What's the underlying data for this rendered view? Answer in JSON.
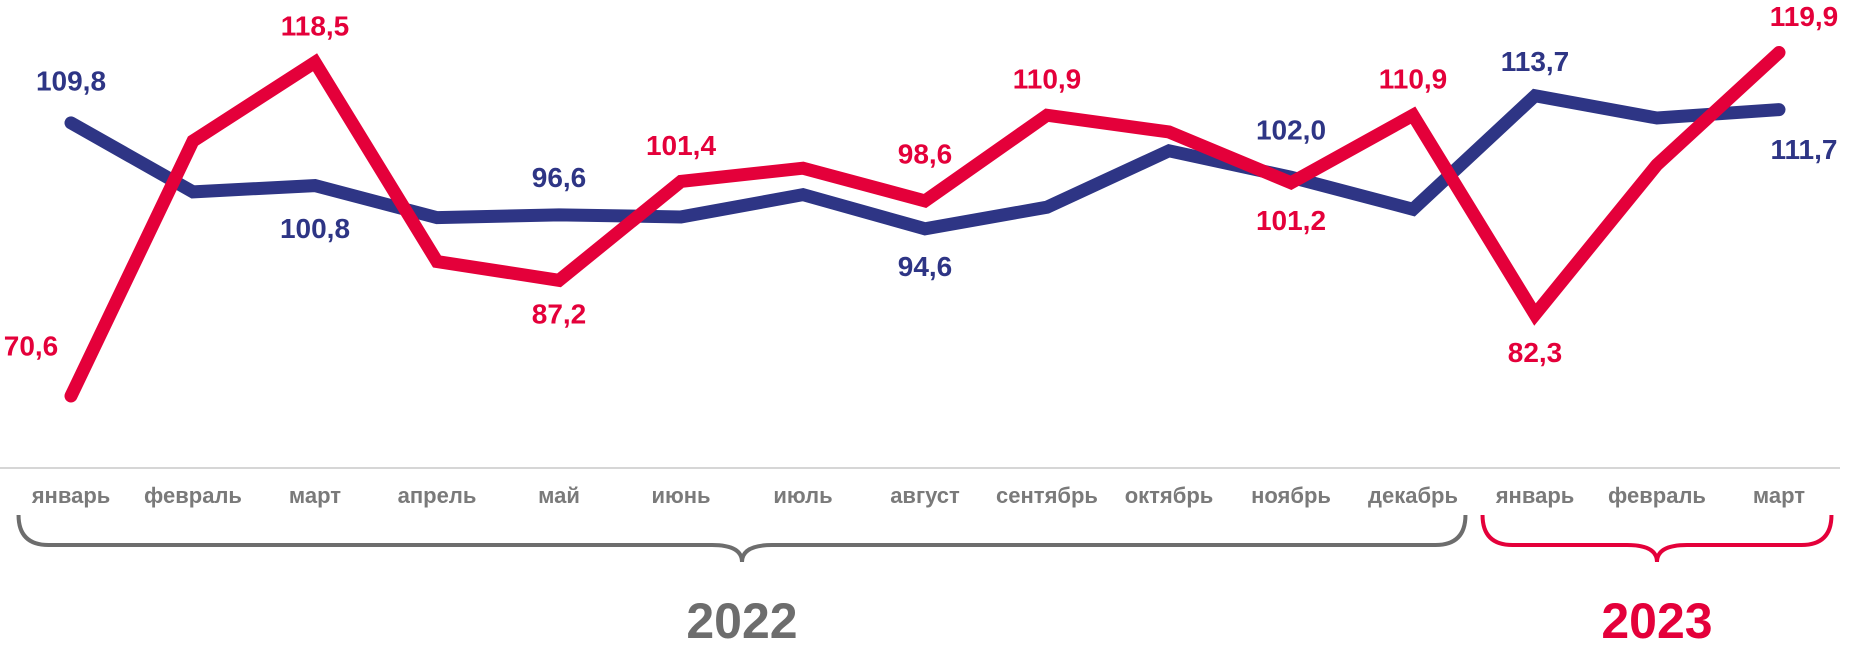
{
  "chart_data": {
    "type": "line",
    "categories": [
      "январь",
      "февраль",
      "март",
      "апрель",
      "май",
      "июнь",
      "июль",
      "август",
      "сентябрь",
      "октябрь",
      "ноябрь",
      "декабрь",
      "январь",
      "февраль",
      "март"
    ],
    "series": [
      {
        "color": "#2e3585",
        "values": [
          109.8,
          99.9,
          100.8,
          96.2,
          96.6,
          96.3,
          99.5,
          94.6,
          97.7,
          105.8,
          102.0,
          97.4,
          113.7,
          110.5,
          111.7
        ],
        "value_labels": [
          "109,8",
          null,
          "100,8",
          null,
          "96,6",
          null,
          null,
          "94,6",
          null,
          null,
          "102,0",
          null,
          "113,7",
          null,
          "111,7"
        ]
      },
      {
        "color": "#e4003a",
        "values": [
          70.6,
          107.2,
          118.5,
          89.9,
          87.2,
          101.4,
          103.3,
          98.6,
          110.9,
          108.5,
          101.2,
          110.9,
          82.3,
          103.8,
          119.9
        ],
        "value_labels": [
          "70,6",
          null,
          "118,5",
          null,
          "87,2",
          "101,4",
          null,
          "98,6",
          "110,9",
          null,
          "101,2",
          "110,9",
          "82,3",
          null,
          "119,9"
        ]
      }
    ],
    "groups": [
      {
        "label": "2022",
        "span": 12,
        "color": "#6d6d6d"
      },
      {
        "label": "2023",
        "span": 3,
        "color": "#e4003a"
      }
    ],
    "ylim": [
      65,
      125
    ]
  }
}
